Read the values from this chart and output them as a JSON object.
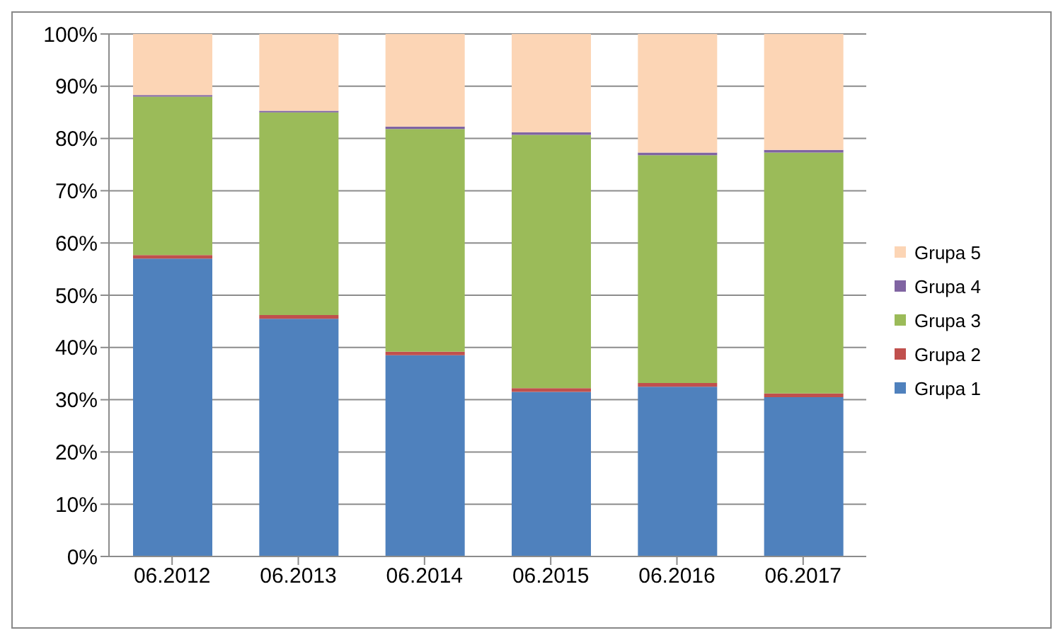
{
  "chart_data": {
    "type": "bar",
    "stacked": true,
    "categories": [
      "06.2012",
      "06.2013",
      "06.2014",
      "06.2015",
      "06.2016",
      "06.2017"
    ],
    "series": [
      {
        "name": "Grupa 1",
        "color": "#4f81bd",
        "values": [
          57,
          45.5,
          38.5,
          31.5,
          32.5,
          30.5
        ]
      },
      {
        "name": "Grupa 2",
        "color": "#c0504d",
        "values": [
          0.7,
          0.7,
          0.7,
          0.7,
          0.7,
          0.7
        ]
      },
      {
        "name": "Grupa 3",
        "color": "#9bbb59",
        "values": [
          30.3,
          38.8,
          42.6,
          48.5,
          43.6,
          46.1
        ]
      },
      {
        "name": "Grupa 4",
        "color": "#8064a2",
        "values": [
          0.3,
          0.3,
          0.5,
          0.5,
          0.5,
          0.5
        ]
      },
      {
        "name": "Grupa 5",
        "color": "#fcd5b5",
        "values": [
          11.7,
          14.7,
          17.7,
          18.8,
          22.7,
          22.2
        ]
      }
    ],
    "ylim": [
      0,
      100
    ],
    "yticks": [
      {
        "value": 0,
        "label": "0%"
      },
      {
        "value": 10,
        "label": "10%"
      },
      {
        "value": 20,
        "label": "20%"
      },
      {
        "value": 30,
        "label": "30%"
      },
      {
        "value": 40,
        "label": "40%"
      },
      {
        "value": 50,
        "label": "50%"
      },
      {
        "value": 60,
        "label": "60%"
      },
      {
        "value": 70,
        "label": "70%"
      },
      {
        "value": 80,
        "label": "80%"
      },
      {
        "value": 90,
        "label": "90%"
      },
      {
        "value": 100,
        "label": "100%"
      }
    ],
    "grid": "y",
    "legend": "right"
  }
}
